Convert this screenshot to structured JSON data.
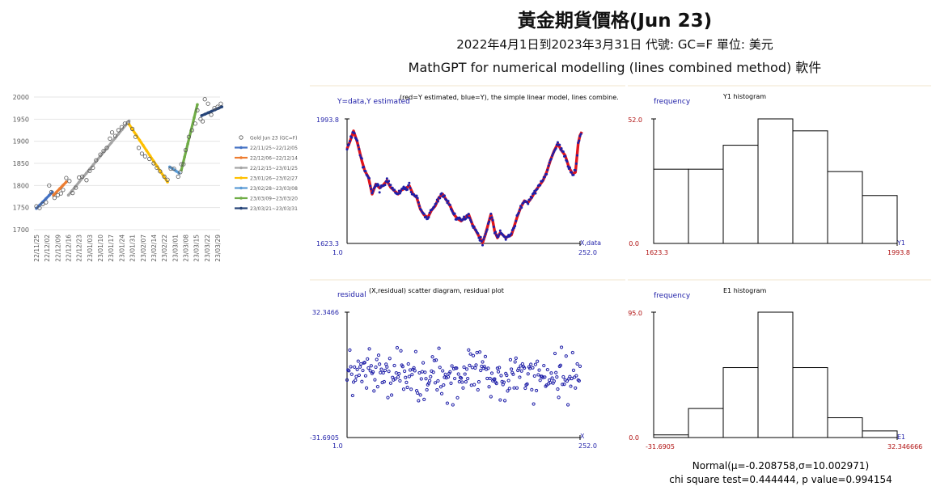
{
  "header": {
    "title": "黃金期貨價格(Jun 23)",
    "subtitle": "2022年4月1日到2023年3月31日  代號: GC=F 單位: 美元",
    "subtitle2": "MathGPT for numerical modelling (lines combined method) 軟件"
  },
  "colors": {
    "blue": "#1f1fa8",
    "red": "#e0151b",
    "darkred": "#b01010"
  },
  "chart_data": [
    {
      "type": "line",
      "ylim": [
        1700,
        2000
      ],
      "yticks": [
        "2000",
        "1950",
        "1900",
        "1850",
        "1800",
        "1750",
        "1700"
      ],
      "categories": [
        "22/11/25",
        "22/12/02",
        "22/12/09",
        "22/12/16",
        "22/12/23",
        "23/01/03",
        "23/01/10",
        "23/01/17",
        "23/01/24",
        "23/01/31",
        "23/02/07",
        "23/02/14",
        "23/02/22",
        "23/03/01",
        "23/03/08",
        "23/03/15",
        "23/03/22",
        "23/03/29"
      ],
      "legend": [
        {
          "name": "Gold Jun 23 (GC=F)",
          "color": "#444444",
          "marker": "circle"
        },
        {
          "name": "22/11/25~22/12/05",
          "color": "#4472c4"
        },
        {
          "name": "22/12/06~22/12/14",
          "color": "#ed7d31"
        },
        {
          "name": "22/12/15~23/01/25",
          "color": "#a5a5a5"
        },
        {
          "name": "23/01/26~23/02/27",
          "color": "#ffc000"
        },
        {
          "name": "23/02/28~23/03/08",
          "color": "#5b9bd5"
        },
        {
          "name": "23/03/09~23/03/20",
          "color": "#70ad47"
        },
        {
          "name": "23/03/21~23/03/31",
          "color": "#264478"
        }
      ],
      "scatter_points": [
        [
          0,
          1753
        ],
        [
          0.3,
          1749
        ],
        [
          0.6,
          1758
        ],
        [
          0.9,
          1762
        ],
        [
          1.2,
          1800
        ],
        [
          1.4,
          1785
        ],
        [
          1.7,
          1772
        ],
        [
          2.0,
          1778
        ],
        [
          2.3,
          1782
        ],
        [
          2.5,
          1790
        ],
        [
          2.8,
          1817
        ],
        [
          3.1,
          1810
        ],
        [
          3.4,
          1783
        ],
        [
          3.7,
          1795
        ],
        [
          4.0,
          1818
        ],
        [
          4.3,
          1820
        ],
        [
          4.7,
          1812
        ],
        [
          5.0,
          1833
        ],
        [
          5.3,
          1840
        ],
        [
          5.6,
          1857
        ],
        [
          6.0,
          1870
        ],
        [
          6.3,
          1878
        ],
        [
          6.6,
          1885
        ],
        [
          6.9,
          1906
        ],
        [
          7.1,
          1920
        ],
        [
          7.4,
          1912
        ],
        [
          7.7,
          1925
        ],
        [
          8.0,
          1932
        ],
        [
          8.3,
          1940
        ],
        [
          8.6,
          1942
        ],
        [
          9.0,
          1928
        ],
        [
          9.3,
          1910
        ],
        [
          9.6,
          1885
        ],
        [
          9.9,
          1872
        ],
        [
          10.2,
          1866
        ],
        [
          10.6,
          1860
        ],
        [
          11.0,
          1850
        ],
        [
          11.3,
          1840
        ],
        [
          11.6,
          1832
        ],
        [
          12.0,
          1820
        ],
        [
          12.3,
          1813
        ],
        [
          12.6,
          1838
        ],
        [
          12.9,
          1838
        ],
        [
          13.3,
          1820
        ],
        [
          13.5,
          1830
        ],
        [
          13.8,
          1848
        ],
        [
          13.6,
          1848
        ],
        [
          14.0,
          1880
        ],
        [
          14.3,
          1910
        ],
        [
          14.6,
          1925
        ],
        [
          14.9,
          1940
        ],
        [
          15.1,
          1970
        ],
        [
          15.4,
          1950
        ],
        [
          15.6,
          1945
        ],
        [
          15.8,
          1995
        ],
        [
          16.1,
          1985
        ],
        [
          16.4,
          1960
        ],
        [
          16.7,
          1975
        ],
        [
          17.0,
          1978
        ],
        [
          17.3,
          1985
        ]
      ],
      "segments": [
        {
          "color": "#4472c4",
          "from": [
            0,
            1748
          ],
          "to": [
            1.5,
            1785
          ]
        },
        {
          "color": "#ed7d31",
          "from": [
            1.6,
            1778
          ],
          "to": [
            2.8,
            1808
          ]
        },
        {
          "color": "#a5a5a5",
          "from": [
            3.0,
            1778
          ],
          "to": [
            8.7,
            1946
          ]
        },
        {
          "color": "#ffc000",
          "from": [
            8.7,
            1938
          ],
          "to": [
            12.3,
            1808
          ]
        },
        {
          "color": "#5b9bd5",
          "from": [
            12.5,
            1842
          ],
          "to": [
            13.4,
            1828
          ]
        },
        {
          "color": "#70ad47",
          "from": [
            13.6,
            1835
          ],
          "to": [
            15.1,
            1983
          ]
        },
        {
          "color": "#264478",
          "from": [
            15.5,
            1958
          ],
          "to": [
            17.4,
            1978
          ]
        }
      ]
    },
    {
      "type": "line",
      "title": "(red=Y estimated, blue=Y), the simple linear model, lines combine.",
      "ylabel": "Y=data,Y estimated",
      "xlabel": "X,data",
      "xlim": [
        1.0,
        252.0
      ],
      "ylim": [
        1623.3,
        1993.8
      ],
      "xmin_label": "1.0",
      "xmax_label": "252.0",
      "ymin_label": "1623.3",
      "ymax_label": "1993.8",
      "keypoints": [
        [
          1,
          1905
        ],
        [
          4,
          1925
        ],
        [
          8,
          1958
        ],
        [
          12,
          1925
        ],
        [
          17,
          1868
        ],
        [
          20,
          1840
        ],
        [
          24,
          1820
        ],
        [
          28,
          1770
        ],
        [
          32,
          1800
        ],
        [
          36,
          1788
        ],
        [
          40,
          1797
        ],
        [
          44,
          1810
        ],
        [
          48,
          1790
        ],
        [
          52,
          1780
        ],
        [
          56,
          1770
        ],
        [
          60,
          1783
        ],
        [
          64,
          1787
        ],
        [
          68,
          1795
        ],
        [
          72,
          1770
        ],
        [
          76,
          1760
        ],
        [
          80,
          1725
        ],
        [
          84,
          1708
        ],
        [
          88,
          1700
        ],
        [
          92,
          1722
        ],
        [
          96,
          1735
        ],
        [
          100,
          1760
        ],
        [
          104,
          1770
        ],
        [
          108,
          1752
        ],
        [
          112,
          1735
        ],
        [
          116,
          1710
        ],
        [
          120,
          1697
        ],
        [
          124,
          1690
        ],
        [
          128,
          1700
        ],
        [
          132,
          1710
        ],
        [
          136,
          1680
        ],
        [
          140,
          1660
        ],
        [
          144,
          1640
        ],
        [
          147,
          1625
        ],
        [
          150,
          1650
        ],
        [
          153,
          1680
        ],
        [
          156,
          1710
        ],
        [
          158,
          1690
        ],
        [
          160,
          1660
        ],
        [
          163,
          1640
        ],
        [
          166,
          1655
        ],
        [
          169,
          1648
        ],
        [
          172,
          1640
        ],
        [
          175,
          1645
        ],
        [
          178,
          1648
        ],
        [
          180,
          1665
        ],
        [
          184,
          1700
        ],
        [
          188,
          1730
        ],
        [
          192,
          1750
        ],
        [
          196,
          1745
        ],
        [
          200,
          1760
        ],
        [
          204,
          1780
        ],
        [
          208,
          1795
        ],
        [
          212,
          1810
        ],
        [
          216,
          1835
        ],
        [
          220,
          1870
        ],
        [
          224,
          1898
        ],
        [
          228,
          1920
        ],
        [
          232,
          1900
        ],
        [
          236,
          1885
        ],
        [
          240,
          1850
        ],
        [
          244,
          1830
        ],
        [
          247,
          1835
        ],
        [
          250,
          1920
        ],
        [
          252,
          1945
        ],
        [
          254,
          1955
        ]
      ]
    },
    {
      "type": "bar",
      "title": "Y1 histogram",
      "ylabel": "frequency",
      "xlabel": "Y1",
      "xmin_label": "1623.3",
      "xmax_label": "1993.8",
      "ymax_label": "52.0",
      "ymin_label": "0.0",
      "ylim": [
        0,
        52
      ],
      "values": [
        31,
        31,
        41,
        52,
        47,
        30,
        20
      ]
    },
    {
      "type": "scatter",
      "title": "(X,residual) scatter diagram, residual plot",
      "ylabel": "residual",
      "xlabel": "X",
      "xlim": [
        1.0,
        252.0
      ],
      "ylim": [
        -31.6905,
        32.3466
      ],
      "xmin_label": "1.0",
      "xmax_label": "252.0",
      "ymin_label": "-31.6905",
      "ymax_label": "32.3466"
    },
    {
      "type": "bar",
      "title": "E1 histogram",
      "ylabel": "frequency",
      "xlabel": "E1",
      "xmin_label": "-31.6905",
      "xmax_label": "32.346666",
      "ymax_label": "95.0",
      "ymin_label": "0.0",
      "ylim": [
        0,
        95
      ],
      "values": [
        2,
        22,
        53,
        95,
        53,
        15,
        5
      ]
    }
  ],
  "stats": {
    "line1": "Normal(μ=-0.208758,σ=10.002971)",
    "line2": "chi square test=0.444444, p value=0.994154"
  }
}
